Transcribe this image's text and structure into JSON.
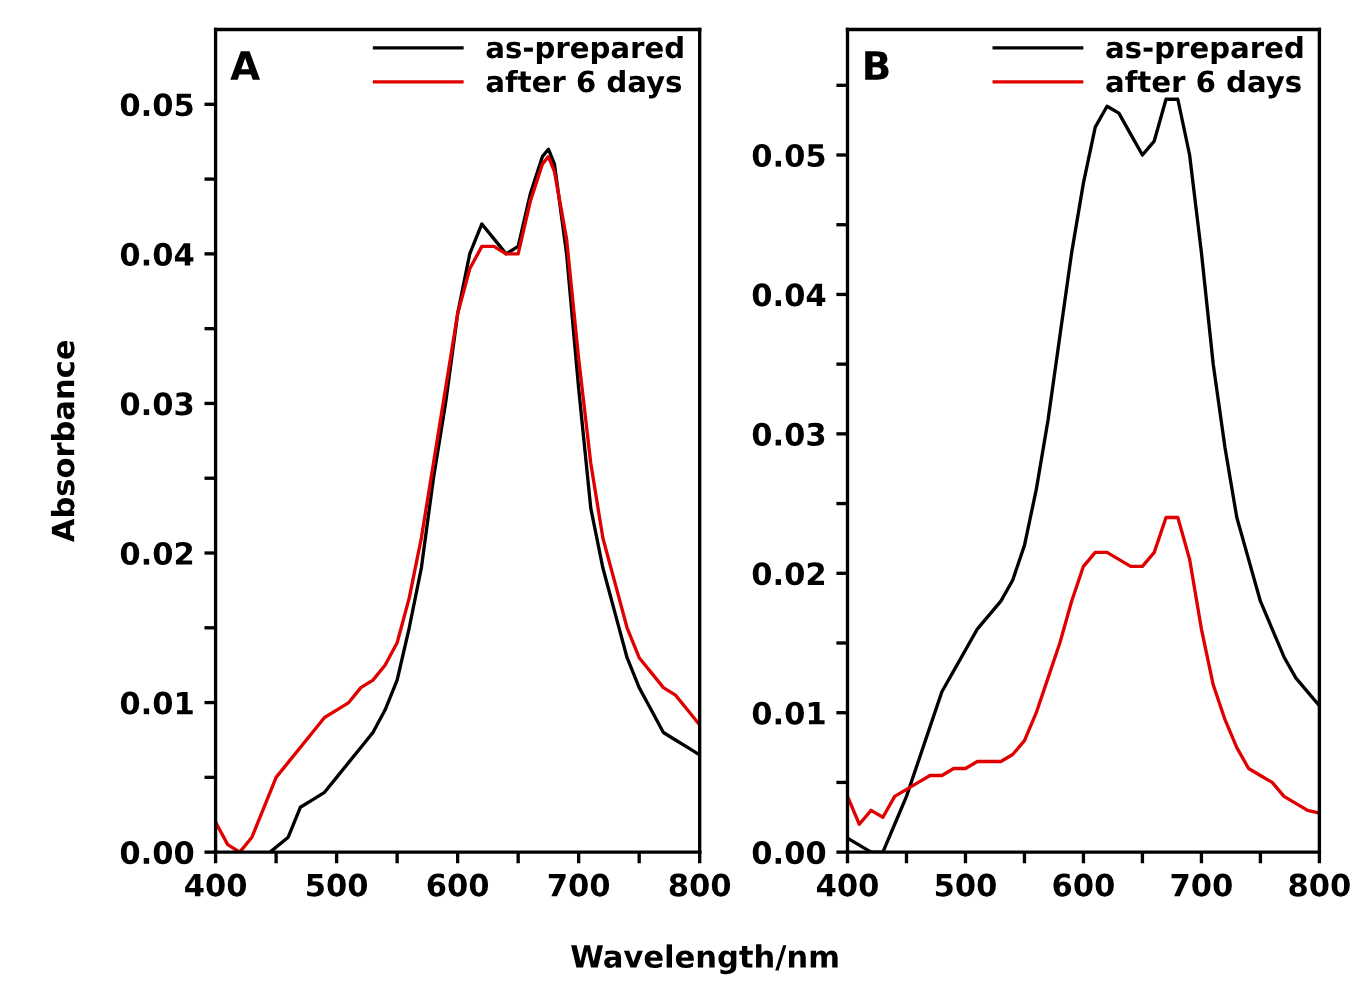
{
  "chart_data": [
    {
      "type": "line",
      "annotations": [
        "A"
      ],
      "ylabel": "Absorbance",
      "xlabel": "Wavelength/nm",
      "legend": "top right",
      "xlim": [
        400,
        800
      ],
      "ylim": [
        0,
        0.055
      ],
      "xticks": [
        400,
        {
          "value": 450,
          "label": null
        },
        500,
        {
          "value": 550,
          "label": null
        },
        600,
        {
          "value": 650,
          "label": null
        },
        700,
        {
          "value": 750,
          "label": null
        },
        800
      ],
      "yticks": [
        {
          "value": 0,
          "label": "0.00"
        },
        {
          "value": 0.005,
          "label": null
        },
        {
          "value": 0.01,
          "label": "0.01"
        },
        {
          "value": 0.015,
          "label": null
        },
        {
          "value": 0.02,
          "label": "0.02"
        },
        {
          "value": 0.025,
          "label": null
        },
        {
          "value": 0.03,
          "label": "0.03"
        },
        {
          "value": 0.035,
          "label": null
        },
        {
          "value": 0.04,
          "label": "0.04"
        },
        {
          "value": 0.045,
          "label": null
        },
        {
          "value": 0.05,
          "label": "0.05"
        }
      ],
      "series": [
        {
          "name": "as-prepared",
          "color": "#000000",
          "x": [
            445,
            460,
            470,
            480,
            490,
            500,
            510,
            520,
            530,
            540,
            550,
            560,
            570,
            580,
            590,
            600,
            610,
            620,
            630,
            640,
            650,
            660,
            670,
            675,
            680,
            690,
            700,
            710,
            720,
            730,
            740,
            750,
            760,
            770,
            780,
            790,
            800
          ],
          "values": [
            0.0,
            0.001,
            0.003,
            0.0035,
            0.004,
            0.005,
            0.006,
            0.007,
            0.008,
            0.0095,
            0.0115,
            0.015,
            0.019,
            0.025,
            0.03,
            0.036,
            0.04,
            0.042,
            0.041,
            0.04,
            0.0405,
            0.044,
            0.0465,
            0.047,
            0.046,
            0.04,
            0.031,
            0.023,
            0.019,
            0.016,
            0.013,
            0.011,
            0.0095,
            0.008,
            0.0075,
            0.007,
            0.0065
          ]
        },
        {
          "name": "after 6 days",
          "color": "#e00000",
          "x": [
            400,
            410,
            420,
            430,
            440,
            450,
            460,
            470,
            480,
            490,
            500,
            510,
            520,
            530,
            540,
            550,
            560,
            570,
            580,
            590,
            600,
            610,
            620,
            630,
            640,
            650,
            660,
            670,
            675,
            680,
            690,
            700,
            710,
            720,
            730,
            740,
            750,
            760,
            770,
            780,
            790,
            800
          ],
          "values": [
            0.002,
            0.0005,
            0.0,
            0.001,
            0.003,
            0.005,
            0.006,
            0.007,
            0.008,
            0.009,
            0.0095,
            0.01,
            0.011,
            0.0115,
            0.0125,
            0.014,
            0.017,
            0.021,
            0.026,
            0.031,
            0.036,
            0.039,
            0.0405,
            0.0405,
            0.04,
            0.04,
            0.0435,
            0.046,
            0.0465,
            0.0455,
            0.041,
            0.033,
            0.026,
            0.021,
            0.018,
            0.015,
            0.013,
            0.012,
            0.011,
            0.0105,
            0.0095,
            0.0085
          ]
        }
      ]
    },
    {
      "type": "line",
      "annotations": [
        "B"
      ],
      "legend": "top right",
      "xlim": [
        400,
        800
      ],
      "ylim": [
        0,
        0.059
      ],
      "xticks": [
        400,
        {
          "value": 450,
          "label": null
        },
        500,
        {
          "value": 550,
          "label": null
        },
        600,
        {
          "value": 650,
          "label": null
        },
        700,
        {
          "value": 750,
          "label": null
        },
        800
      ],
      "yticks": [
        {
          "value": 0,
          "label": "0.00"
        },
        {
          "value": 0.005,
          "label": null
        },
        {
          "value": 0.01,
          "label": "0.01"
        },
        {
          "value": 0.015,
          "label": null
        },
        {
          "value": 0.02,
          "label": "0.02"
        },
        {
          "value": 0.025,
          "label": null
        },
        {
          "value": 0.03,
          "label": "0.03"
        },
        {
          "value": 0.035,
          "label": null
        },
        {
          "value": 0.04,
          "label": "0.04"
        },
        {
          "value": 0.045,
          "label": null
        },
        {
          "value": 0.05,
          "label": "0.05"
        },
        {
          "value": 0.055,
          "label": null
        }
      ],
      "series": [
        {
          "name": "as-prepared",
          "color": "#000000",
          "x": [
            400,
            410,
            420,
            430,
            440,
            450,
            460,
            470,
            480,
            490,
            500,
            510,
            520,
            530,
            540,
            550,
            560,
            570,
            580,
            590,
            600,
            610,
            620,
            630,
            640,
            650,
            660,
            670,
            680,
            690,
            700,
            710,
            720,
            730,
            740,
            750,
            760,
            770,
            780,
            790,
            800
          ],
          "values": [
            0.001,
            0.0005,
            0.0,
            0.0,
            0.002,
            0.004,
            0.0065,
            0.009,
            0.0115,
            0.013,
            0.0145,
            0.016,
            0.017,
            0.018,
            0.0195,
            0.022,
            0.026,
            0.031,
            0.037,
            0.043,
            0.048,
            0.052,
            0.0535,
            0.053,
            0.0515,
            0.05,
            0.051,
            0.054,
            0.054,
            0.05,
            0.043,
            0.035,
            0.029,
            0.024,
            0.021,
            0.018,
            0.016,
            0.014,
            0.0125,
            0.0115,
            0.0105
          ]
        },
        {
          "name": "after 6 days",
          "color": "#e00000",
          "x": [
            400,
            410,
            420,
            430,
            440,
            450,
            460,
            470,
            480,
            490,
            500,
            510,
            520,
            530,
            540,
            550,
            560,
            570,
            580,
            590,
            600,
            610,
            620,
            630,
            640,
            650,
            660,
            670,
            680,
            690,
            700,
            710,
            720,
            730,
            740,
            750,
            760,
            770,
            780,
            790,
            800
          ],
          "values": [
            0.004,
            0.002,
            0.003,
            0.0025,
            0.004,
            0.0045,
            0.005,
            0.0055,
            0.0055,
            0.006,
            0.006,
            0.0065,
            0.0065,
            0.0065,
            0.007,
            0.008,
            0.01,
            0.0125,
            0.015,
            0.018,
            0.0205,
            0.0215,
            0.0215,
            0.021,
            0.0205,
            0.0205,
            0.0215,
            0.024,
            0.024,
            0.021,
            0.016,
            0.012,
            0.0095,
            0.0075,
            0.006,
            0.0055,
            0.005,
            0.004,
            0.0035,
            0.003,
            0.0028
          ]
        }
      ]
    }
  ]
}
